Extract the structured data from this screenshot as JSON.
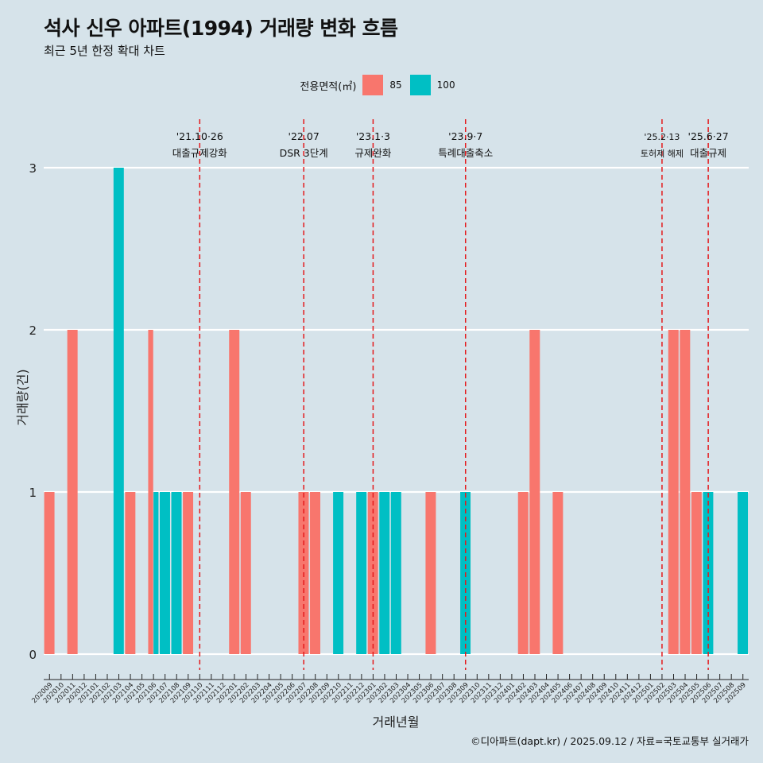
{
  "title": "석사 신우 아파트(1994) 거래량 변화 흐름",
  "subtitle": "최근 5년 한정 확대 차트",
  "legend": {
    "title": "전용면적(㎡)",
    "items": [
      {
        "label": "85",
        "color": "#f8766d"
      },
      {
        "label": "100",
        "color": "#00bfc4"
      }
    ]
  },
  "caption": "©디아파트(dapt.kr) / 2025.09.12 / 자료=국토교통부 실거래가",
  "chart_data": {
    "type": "bar",
    "xlabel": "거래년월",
    "ylabel": "거래량(건)",
    "ylim": [
      0,
      3
    ],
    "yticks": [
      0,
      1,
      2,
      3
    ],
    "grid": true,
    "legend_position": "top",
    "categories": [
      "202009",
      "202010",
      "202011",
      "202012",
      "202101",
      "202102",
      "202103",
      "202104",
      "202105",
      "202106",
      "202107",
      "202108",
      "202109",
      "202110",
      "202111",
      "202112",
      "202201",
      "202202",
      "202203",
      "202204",
      "202205",
      "202206",
      "202207",
      "202208",
      "202209",
      "202210",
      "202211",
      "202212",
      "202301",
      "202302",
      "202303",
      "202304",
      "202305",
      "202306",
      "202307",
      "202308",
      "202309",
      "202310",
      "202311",
      "202312",
      "202401",
      "202402",
      "202403",
      "202404",
      "202405",
      "202406",
      "202407",
      "202408",
      "202409",
      "202410",
      "202411",
      "202412",
      "202501",
      "202502",
      "202503",
      "202504",
      "202505",
      "202506",
      "202507",
      "202508",
      "202509"
    ],
    "series": [
      {
        "name": "85",
        "color": "#f8766d",
        "values": [
          1,
          0,
          2,
          0,
          0,
          0,
          0,
          1,
          0,
          2,
          0,
          0,
          1,
          0,
          0,
          0,
          2,
          1,
          0,
          0,
          0,
          0,
          1,
          1,
          0,
          0,
          0,
          0,
          1,
          0,
          0,
          0,
          0,
          1,
          0,
          0,
          0,
          0,
          0,
          0,
          0,
          1,
          2,
          0,
          1,
          0,
          0,
          0,
          0,
          0,
          0,
          0,
          0,
          0,
          2,
          2,
          1,
          0,
          0,
          0,
          0
        ]
      },
      {
        "name": "100",
        "color": "#00bfc4",
        "values": [
          0,
          0,
          0,
          0,
          0,
          0,
          3,
          0,
          0,
          1,
          1,
          1,
          0,
          0,
          0,
          0,
          0,
          0,
          0,
          0,
          0,
          0,
          0,
          0,
          0,
          1,
          0,
          1,
          0,
          1,
          1,
          0,
          0,
          0,
          0,
          0,
          1,
          0,
          0,
          0,
          0,
          0,
          0,
          0,
          0,
          0,
          0,
          0,
          0,
          0,
          0,
          0,
          0,
          0,
          0,
          0,
          0,
          1,
          0,
          0,
          1
        ]
      }
    ],
    "annotations": [
      {
        "x": "202110",
        "date": "'21.10·26",
        "label": "대출규제강화"
      },
      {
        "x": "202207",
        "date": "'22.07",
        "label": "DSR 3단계"
      },
      {
        "x": "202301",
        "date": "'23.1·3",
        "label": "규제완화"
      },
      {
        "x": "202309",
        "date": "'23.9·7",
        "label": "특례대출축소"
      },
      {
        "x": "202502",
        "date": "'25.2·13",
        "label": "토허제 해제"
      },
      {
        "x": "202506",
        "date": "'25.6·27",
        "label": "대출규제"
      }
    ]
  }
}
